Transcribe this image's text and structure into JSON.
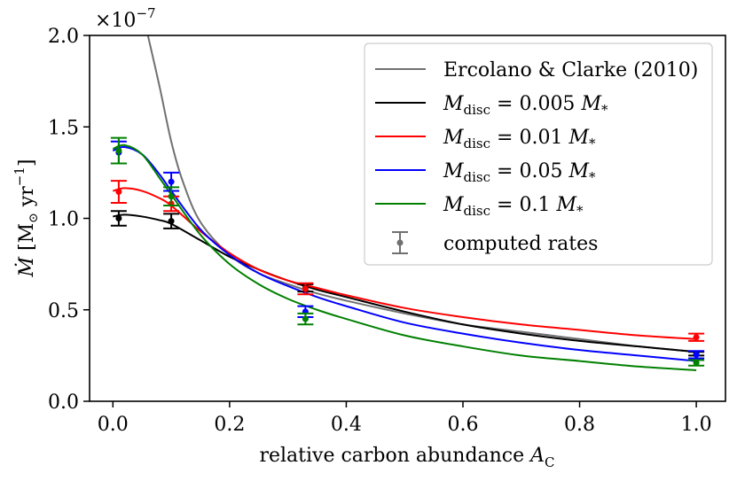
{
  "chart_data": {
    "type": "line",
    "scale_text": "×10",
    "scale_exponent": "−7",
    "xlabel_text": "relative carbon abundance ",
    "xlabel_var": "A",
    "xlabel_sub": "C",
    "ylabel_var": "Ṁ",
    "ylabel_unit_open": " [M",
    "ylabel_unit_sym": "⊙",
    "ylabel_unit_mid": " yr",
    "ylabel_unit_exp": "−1",
    "ylabel_unit_close": "]",
    "xlim": [
      -0.04,
      1.05
    ],
    "ylim": [
      0.0,
      2.0
    ],
    "xticks": [
      0.0,
      0.2,
      0.4,
      0.6,
      0.8,
      1.0
    ],
    "xtick_labels": [
      "0.0",
      "0.2",
      "0.4",
      "0.6",
      "0.8",
      "1.0"
    ],
    "yticks": [
      0.0,
      0.5,
      1.0,
      1.5,
      2.0
    ],
    "ytick_labels": [
      "0.0",
      "0.5",
      "1.0",
      "1.5",
      "2.0"
    ],
    "legend_position": "top-right",
    "reference_curve": {
      "name": "Ercolano & Clarke (2010)",
      "color": "#707070",
      "x": [
        0.06,
        0.08,
        0.1,
        0.12,
        0.15,
        0.2,
        0.25,
        0.3,
        0.35,
        0.4,
        0.5,
        0.6,
        0.7,
        0.8,
        0.9,
        1.0
      ],
      "y": [
        2.0,
        1.72,
        1.42,
        1.2,
        0.98,
        0.8,
        0.7,
        0.64,
        0.59,
        0.55,
        0.48,
        0.42,
        0.38,
        0.34,
        0.3,
        0.27
      ]
    },
    "series": [
      {
        "name_prefix": "M",
        "name_sub": "disc",
        "name_value": " = 0.005 ",
        "name_star_var": "M",
        "name_star_sub": "*",
        "color": "#000000",
        "points": [
          {
            "x": 0.01,
            "y": 1.0,
            "err": 0.04
          },
          {
            "x": 0.1,
            "y": 0.985,
            "err": 0.04
          },
          {
            "x": 0.33,
            "y": 0.62,
            "err": 0.02
          },
          {
            "x": 1.0,
            "y": 0.26,
            "err": 0.01
          }
        ],
        "curve_x": [
          0.0,
          0.02,
          0.05,
          0.08,
          0.1,
          0.15,
          0.2,
          0.25,
          0.3,
          0.35,
          0.4,
          0.5,
          0.6,
          0.7,
          0.8,
          0.9,
          1.0
        ],
        "curve_y": [
          1.01,
          1.02,
          1.01,
          0.99,
          0.97,
          0.88,
          0.79,
          0.72,
          0.66,
          0.61,
          0.57,
          0.49,
          0.42,
          0.37,
          0.33,
          0.3,
          0.27
        ]
      },
      {
        "name_prefix": "M",
        "name_sub": "disc",
        "name_value": " = 0.01 ",
        "name_star_var": "M",
        "name_star_sub": "*",
        "color": "#ff0000",
        "points": [
          {
            "x": 0.01,
            "y": 1.145,
            "err": 0.06
          },
          {
            "x": 0.1,
            "y": 1.08,
            "err": 0.04
          },
          {
            "x": 0.33,
            "y": 0.615,
            "err": 0.03
          },
          {
            "x": 1.0,
            "y": 0.35,
            "err": 0.02
          }
        ],
        "curve_x": [
          0.0,
          0.02,
          0.05,
          0.08,
          0.1,
          0.15,
          0.2,
          0.25,
          0.3,
          0.35,
          0.4,
          0.5,
          0.6,
          0.7,
          0.8,
          0.9,
          1.0
        ],
        "curve_y": [
          1.15,
          1.165,
          1.15,
          1.11,
          1.07,
          0.93,
          0.81,
          0.72,
          0.66,
          0.62,
          0.58,
          0.51,
          0.46,
          0.42,
          0.39,
          0.36,
          0.34
        ]
      },
      {
        "name_prefix": "M",
        "name_sub": "disc",
        "name_value": " = 0.05 ",
        "name_star_var": "M",
        "name_star_sub": "*",
        "color": "#0000ff",
        "points": [
          {
            "x": 0.01,
            "y": 1.36,
            "err": 0.06
          },
          {
            "x": 0.1,
            "y": 1.2,
            "err": 0.05
          },
          {
            "x": 0.33,
            "y": 0.49,
            "err": 0.03
          },
          {
            "x": 1.0,
            "y": 0.255,
            "err": 0.02
          }
        ],
        "curve_x": [
          0.0,
          0.02,
          0.05,
          0.08,
          0.1,
          0.15,
          0.2,
          0.25,
          0.3,
          0.35,
          0.4,
          0.5,
          0.6,
          0.7,
          0.8,
          0.9,
          1.0
        ],
        "curve_y": [
          1.37,
          1.39,
          1.35,
          1.24,
          1.15,
          0.94,
          0.8,
          0.7,
          0.63,
          0.57,
          0.52,
          0.43,
          0.37,
          0.32,
          0.28,
          0.25,
          0.22
        ]
      },
      {
        "name_prefix": "M",
        "name_sub": "disc",
        "name_value": " = 0.1 ",
        "name_star_var": "M",
        "name_star_sub": "*",
        "color": "#008000",
        "points": [
          {
            "x": 0.01,
            "y": 1.37,
            "err": 0.07
          },
          {
            "x": 0.1,
            "y": 1.12,
            "err": 0.05
          },
          {
            "x": 0.33,
            "y": 0.45,
            "err": 0.03
          },
          {
            "x": 1.0,
            "y": 0.21,
            "err": 0.015
          }
        ],
        "curve_x": [
          0.0,
          0.02,
          0.05,
          0.08,
          0.1,
          0.15,
          0.2,
          0.25,
          0.3,
          0.35,
          0.4,
          0.5,
          0.6,
          0.7,
          0.8,
          0.9,
          1.0
        ],
        "curve_y": [
          1.38,
          1.4,
          1.35,
          1.22,
          1.13,
          0.91,
          0.75,
          0.64,
          0.56,
          0.5,
          0.45,
          0.36,
          0.3,
          0.25,
          0.22,
          0.19,
          0.17
        ]
      }
    ],
    "markers_legend": {
      "name": "computed rates",
      "color": "#707070"
    }
  }
}
